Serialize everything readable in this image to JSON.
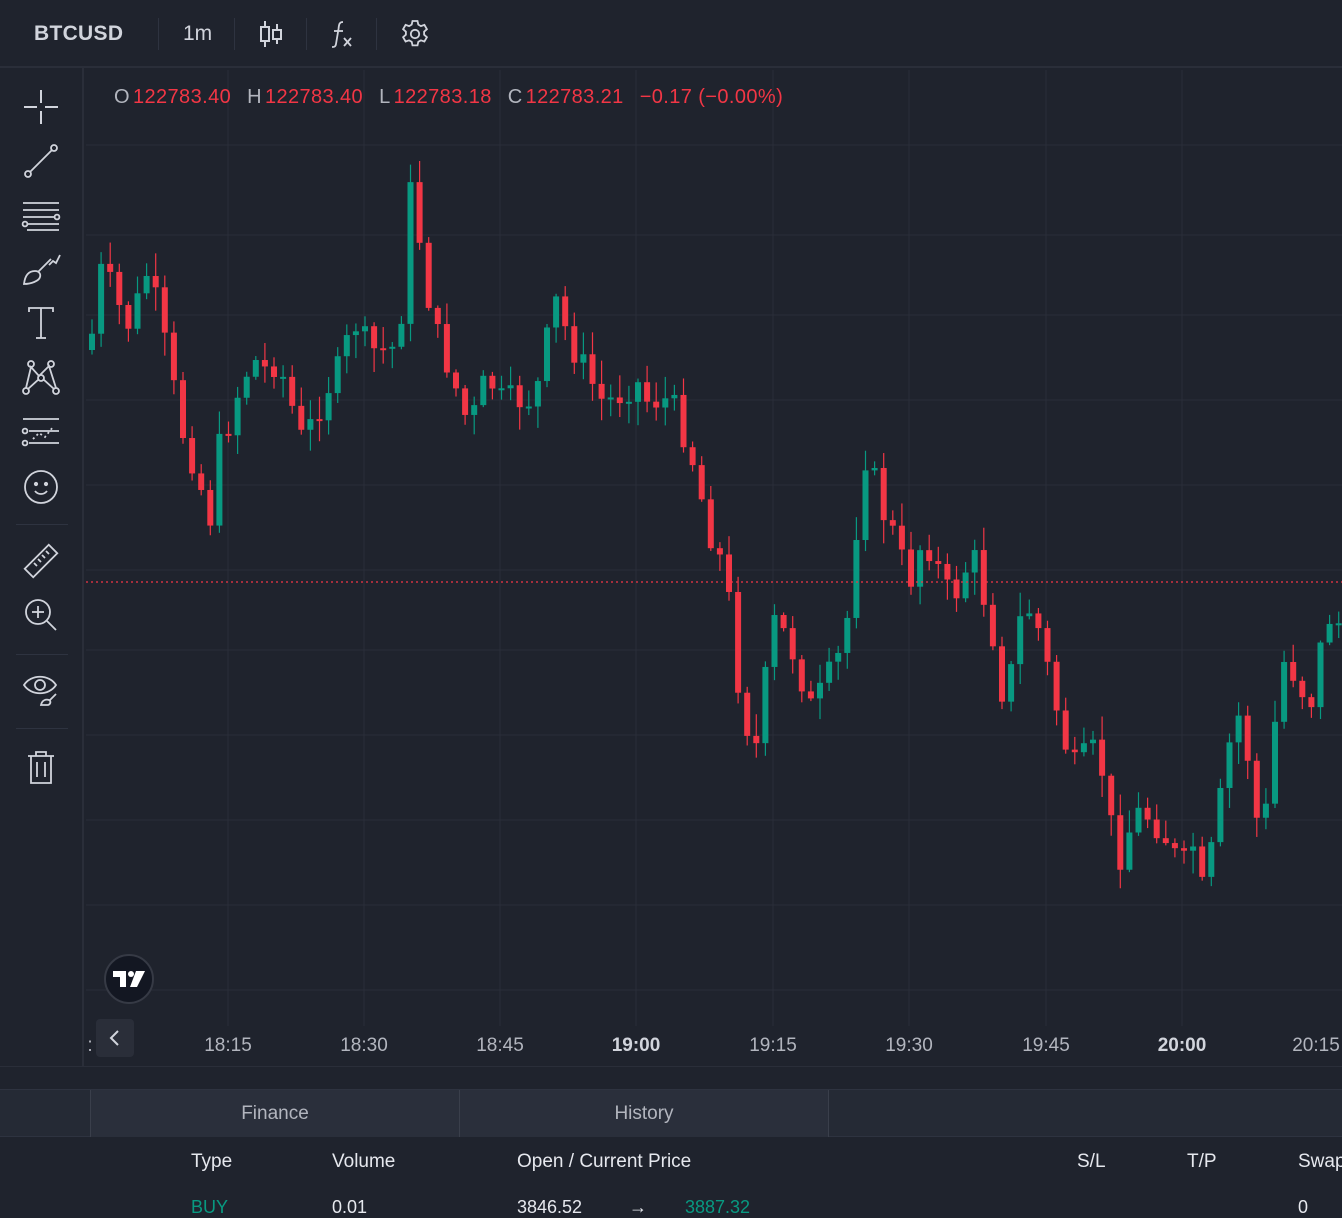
{
  "toolbar": {
    "symbol": "BTCUSD",
    "interval": "1m",
    "icons": [
      "candles-icon",
      "function-icon",
      "settings-gear-icon"
    ]
  },
  "drawing_tools": [
    "crosshair-icon",
    "trend-line-icon",
    "fib-retracement-icon",
    "brush-icon",
    "text-icon",
    "pattern-icon",
    "prediction-icon",
    "emoji-icon",
    "ruler-icon",
    "zoom-in-icon",
    "eye-icon",
    "trash-icon"
  ],
  "legend": {
    "o_label": "O",
    "o_value": "122783.40",
    "h_label": "H",
    "h_value": "122783.40",
    "l_label": "L",
    "l_value": "122783.18",
    "c_label": "C",
    "c_value": "122783.21",
    "change": "−0.17 (−0.00%)"
  },
  "colors": {
    "up": "#089981",
    "down": "#f23645",
    "background": "#1f232d",
    "grid": "#2a2e39"
  },
  "chart_data": {
    "type": "candlestick",
    "interval": "1m",
    "x_ticks": [
      {
        "label": "18:15",
        "bold": false
      },
      {
        "label": "18:30",
        "bold": false
      },
      {
        "label": "18:45",
        "bold": false
      },
      {
        "label": "19:00",
        "bold": true
      },
      {
        "label": "19:15",
        "bold": false
      },
      {
        "label": "19:30",
        "bold": false
      },
      {
        "label": "19:45",
        "bold": false
      },
      {
        "label": "20:00",
        "bold": true
      },
      {
        "label": "20:15",
        "bold": false
      }
    ],
    "current_price_line": 122783.21,
    "grid": true
  },
  "tabs": [
    {
      "label": "Finance"
    },
    {
      "label": "History"
    }
  ],
  "positions": {
    "columns": [
      "Type",
      "Volume",
      "Open / Current Price",
      "S/L",
      "T/P",
      "Swap"
    ],
    "rows": [
      {
        "type": "BUY",
        "volume": "0.01",
        "open_price": "3846.52",
        "arrow": "→",
        "current_price": "3887.32",
        "swap": "0"
      }
    ]
  },
  "time_axis_prefix": ":"
}
